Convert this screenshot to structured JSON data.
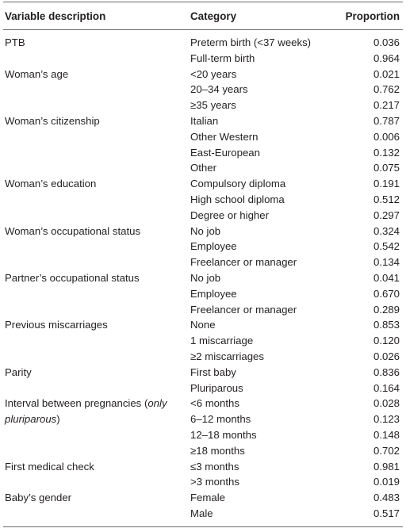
{
  "headers": {
    "variable": "Variable description",
    "category": "Category",
    "proportion": "Proportion"
  },
  "rows": [
    {
      "variable": "PTB",
      "category": "Preterm birth (<37 weeks)",
      "proportion": "0.036"
    },
    {
      "variable": "",
      "category": "Full-term birth",
      "proportion": "0.964"
    },
    {
      "variable": "Woman’s age",
      "category": "<20 years",
      "proportion": "0.021"
    },
    {
      "variable": "",
      "category": "20–34 years",
      "proportion": "0.762"
    },
    {
      "variable": "",
      "category": "≥35 years",
      "proportion": "0.217"
    },
    {
      "variable": "Woman’s citizenship",
      "category": "Italian",
      "proportion": "0.787"
    },
    {
      "variable": "",
      "category": "Other Western",
      "proportion": "0.006"
    },
    {
      "variable": "",
      "category": "East-European",
      "proportion": "0.132"
    },
    {
      "variable": "",
      "category": "Other",
      "proportion": "0.075"
    },
    {
      "variable": "Woman’s education",
      "category": "Compulsory diploma",
      "proportion": "0.191"
    },
    {
      "variable": "",
      "category": "High school diploma",
      "proportion": "0.512"
    },
    {
      "variable": "",
      "category": "Degree or higher",
      "proportion": "0.297"
    },
    {
      "variable": "Woman’s occupational status",
      "category": "No job",
      "proportion": "0.324"
    },
    {
      "variable": "",
      "category": "Employee",
      "proportion": "0.542"
    },
    {
      "variable": "",
      "category": "Freelancer or manager",
      "proportion": "0.134"
    },
    {
      "variable": "Partner’s occupational status",
      "category": "No job",
      "proportion": "0.041"
    },
    {
      "variable": "",
      "category": "Employee",
      "proportion": "0.670"
    },
    {
      "variable": "",
      "category": "Freelancer or manager",
      "proportion": "0.289"
    },
    {
      "variable": "Previous miscarriages",
      "category": "None",
      "proportion": "0.853"
    },
    {
      "variable": "",
      "category": "1 miscarriage",
      "proportion": "0.120"
    },
    {
      "variable": "",
      "category": "≥2 miscarriages",
      "proportion": "0.026"
    },
    {
      "variable": "Parity",
      "category": "First baby",
      "proportion": "0.836"
    },
    {
      "variable": "",
      "category": "Pluriparous",
      "proportion": "0.164"
    },
    {
      "variable": "Interval between pregnancies (",
      "variable_italic": "only",
      "category": "<6 months",
      "proportion": "0.028"
    },
    {
      "variable": "",
      "variable_italic": "pluriparous",
      "variable_suffix": ")",
      "category": "6–12 months",
      "proportion": "0.123"
    },
    {
      "variable": "",
      "category": "12–18 months",
      "proportion": "0.148"
    },
    {
      "variable": "",
      "category": "≥18 months",
      "proportion": "0.702"
    },
    {
      "variable": "First medical check",
      "category": "≤3 months",
      "proportion": "0.981"
    },
    {
      "variable": "",
      "category": ">3 months",
      "proportion": "0.019"
    },
    {
      "variable": "Baby’s gender",
      "category": "Female",
      "proportion": "0.483"
    },
    {
      "variable": "",
      "category": "Male",
      "proportion": "0.517"
    }
  ]
}
